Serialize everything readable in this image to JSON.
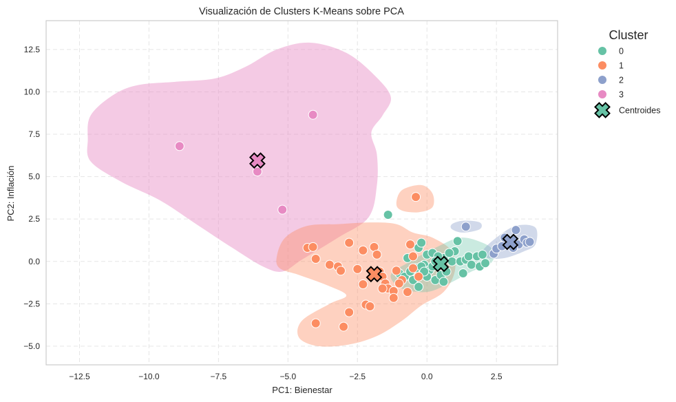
{
  "chart_data": {
    "type": "scatter",
    "title": "Visualización de Clusters K-Means sobre PCA",
    "xlabel": "PC1: Bienestar",
    "ylabel": "PC2: Inflación",
    "xlim": [
      -13.7,
      4.7
    ],
    "ylim": [
      -6.1,
      14.2
    ],
    "xticks": [
      -12.5,
      -10.0,
      -7.5,
      -5.0,
      -2.5,
      0.0,
      2.5
    ],
    "xtick_labels": [
      "−12.5",
      "−10.0",
      "−7.5",
      "−5.0",
      "−2.5",
      "0.0",
      "2.5"
    ],
    "yticks": [
      -5.0,
      -2.5,
      0.0,
      2.5,
      5.0,
      7.5,
      10.0,
      12.5
    ],
    "ytick_labels": [
      "−5.0",
      "−2.5",
      "0.0",
      "2.5",
      "5.0",
      "7.5",
      "10.0",
      "12.5"
    ],
    "grid": true,
    "legend_title": "Cluster",
    "legend_placement": "outside-top-right",
    "series": [
      {
        "name": "0",
        "color": "#66c2a5",
        "points": [
          [
            -1.4,
            2.75
          ],
          [
            -1.0,
            -0.7
          ],
          [
            -0.8,
            -0.9
          ],
          [
            -0.6,
            -0.6
          ],
          [
            -0.5,
            -1.1
          ],
          [
            -0.4,
            -0.4
          ],
          [
            -0.3,
            0.8
          ],
          [
            -0.2,
            1.1
          ],
          [
            -0.1,
            -0.2
          ],
          [
            0.0,
            0.4
          ],
          [
            0.1,
            -0.5
          ],
          [
            0.2,
            0.5
          ],
          [
            0.3,
            -1.1
          ],
          [
            -0.3,
            -1.5
          ],
          [
            0.5,
            -0.8
          ],
          [
            0.6,
            0.2
          ],
          [
            0.7,
            -0.6
          ],
          [
            0.6,
            -1.2
          ],
          [
            0.9,
            0.0
          ],
          [
            1.0,
            0.6
          ],
          [
            1.1,
            1.2
          ],
          [
            1.2,
            0.0
          ],
          [
            1.4,
            0.1
          ],
          [
            1.3,
            -0.7
          ],
          [
            1.5,
            0.3
          ],
          [
            1.6,
            -0.2
          ],
          [
            1.8,
            0.3
          ],
          [
            1.9,
            -0.3
          ],
          [
            2.0,
            0.4
          ],
          [
            2.1,
            -0.1
          ],
          [
            0.4,
            0.3
          ],
          [
            0.2,
            -0.3
          ],
          [
            -0.2,
            -0.3
          ],
          [
            0.0,
            -0.9
          ],
          [
            0.8,
            0.5
          ],
          [
            -0.7,
            0.2
          ],
          [
            -0.1,
            -0.6
          ],
          [
            0.3,
            0.0
          ]
        ]
      },
      {
        "name": "1",
        "color": "#fc8d62",
        "points": [
          [
            -0.4,
            3.8
          ],
          [
            -4.3,
            0.8
          ],
          [
            -4.1,
            0.85
          ],
          [
            -4.0,
            0.15
          ],
          [
            -2.8,
            1.1
          ],
          [
            -2.3,
            0.65
          ],
          [
            -1.9,
            0.85
          ],
          [
            -1.8,
            0.4
          ],
          [
            -3.5,
            -0.2
          ],
          [
            -3.2,
            -0.3
          ],
          [
            -3.1,
            -0.55
          ],
          [
            -2.5,
            -0.45
          ],
          [
            -2.3,
            -1.35
          ],
          [
            -2.2,
            -2.55
          ],
          [
            -2.05,
            -2.65
          ],
          [
            -2.8,
            -3.0
          ],
          [
            -3.0,
            -3.85
          ],
          [
            -4.0,
            -3.65
          ],
          [
            -1.7,
            -0.6
          ],
          [
            -1.6,
            -0.9
          ],
          [
            -1.5,
            -1.3
          ],
          [
            -1.4,
            -1.6
          ],
          [
            -1.2,
            -1.75
          ],
          [
            -1.2,
            -2.15
          ],
          [
            -1.1,
            -0.55
          ],
          [
            -0.9,
            -1.1
          ],
          [
            -0.7,
            -1.8
          ],
          [
            -0.5,
            -0.4
          ],
          [
            -0.6,
            1.0
          ],
          [
            -0.5,
            0.3
          ],
          [
            -0.3,
            -0.9
          ],
          [
            -1.0,
            -1.3
          ],
          [
            -1.6,
            -1.6
          ]
        ]
      },
      {
        "name": "2",
        "color": "#8da0cb",
        "points": [
          [
            1.4,
            2.05
          ],
          [
            3.2,
            1.85
          ],
          [
            2.4,
            0.45
          ],
          [
            2.5,
            0.75
          ],
          [
            2.7,
            0.9
          ],
          [
            2.8,
            1.4
          ],
          [
            3.0,
            1.2
          ],
          [
            3.3,
            1.0
          ],
          [
            3.5,
            1.3
          ],
          [
            3.6,
            1.1
          ],
          [
            3.7,
            1.15
          ],
          [
            3.1,
            0.8
          ]
        ]
      },
      {
        "name": "3",
        "color": "#e78ac3",
        "points": [
          [
            -8.9,
            6.8
          ],
          [
            -4.1,
            8.65
          ],
          [
            -6.1,
            5.3
          ],
          [
            -5.2,
            3.05
          ]
        ]
      }
    ],
    "centroids": {
      "name": "Centroides",
      "points": [
        {
          "cluster": "0",
          "x": 0.5,
          "y": -0.15,
          "color": "#66c2a5"
        },
        {
          "cluster": "1",
          "x": -1.9,
          "y": -0.75,
          "color": "#fc8d62"
        },
        {
          "cluster": "2",
          "x": 3.0,
          "y": 1.15,
          "color": "#8da0cb"
        },
        {
          "cluster": "3",
          "x": -6.1,
          "y": 5.95,
          "color": "#e78ac3"
        }
      ]
    },
    "density_regions": [
      {
        "cluster": "3",
        "color": "#e78ac3",
        "opacity": 0.45,
        "outline": [
          [
            -12.2,
            7.2
          ],
          [
            -12.1,
            8.6
          ],
          [
            -11.3,
            9.8
          ],
          [
            -10.4,
            10.4
          ],
          [
            -9.0,
            10.6
          ],
          [
            -7.6,
            10.8
          ],
          [
            -6.5,
            11.5
          ],
          [
            -5.4,
            12.5
          ],
          [
            -4.2,
            12.9
          ],
          [
            -2.9,
            12.3
          ],
          [
            -1.9,
            11.0
          ],
          [
            -1.3,
            9.7
          ],
          [
            -1.6,
            8.6
          ],
          [
            -2.0,
            7.6
          ],
          [
            -1.8,
            6.3
          ],
          [
            -1.8,
            4.5
          ],
          [
            -2.1,
            2.6
          ],
          [
            -3.2,
            1.4
          ],
          [
            -4.5,
            0.1
          ],
          [
            -5.2,
            -0.6
          ],
          [
            -5.9,
            -0.3
          ],
          [
            -7.0,
            0.8
          ],
          [
            -8.3,
            2.2
          ],
          [
            -9.6,
            3.6
          ],
          [
            -11.0,
            4.7
          ],
          [
            -12.1,
            5.9
          ]
        ]
      },
      {
        "cluster": "1",
        "color": "#fc8d62",
        "opacity": 0.4,
        "outline": [
          [
            -5.4,
            0.3
          ],
          [
            -5.1,
            1.4
          ],
          [
            -4.3,
            2.1
          ],
          [
            -3.2,
            2.2
          ],
          [
            -2.0,
            2.3
          ],
          [
            -1.1,
            2.2
          ],
          [
            -0.5,
            1.7
          ],
          [
            0.2,
            1.4
          ],
          [
            0.9,
            0.6
          ],
          [
            1.0,
            -0.6
          ],
          [
            0.6,
            -1.8
          ],
          [
            -0.2,
            -2.6
          ],
          [
            -0.9,
            -3.5
          ],
          [
            -1.8,
            -4.4
          ],
          [
            -2.8,
            -4.9
          ],
          [
            -3.9,
            -5.0
          ],
          [
            -4.6,
            -4.5
          ],
          [
            -4.5,
            -3.5
          ],
          [
            -3.5,
            -2.5
          ],
          [
            -2.9,
            -2.0
          ],
          [
            -3.6,
            -1.4
          ],
          [
            -4.6,
            -0.8
          ],
          [
            -5.3,
            -0.4
          ]
        ]
      },
      {
        "cluster": "1",
        "color": "#fc8d62",
        "opacity": 0.4,
        "outline": [
          [
            -1.1,
            3.4
          ],
          [
            -0.9,
            4.2
          ],
          [
            -0.2,
            4.5
          ],
          [
            0.2,
            4.0
          ],
          [
            0.2,
            3.2
          ],
          [
            -0.3,
            2.9
          ],
          [
            -0.9,
            3.0
          ]
        ]
      },
      {
        "cluster": "0",
        "color": "#66c2a5",
        "opacity": 0.35,
        "outline": [
          [
            -1.3,
            -0.8
          ],
          [
            -0.6,
            0.0
          ],
          [
            0.3,
            0.8
          ],
          [
            1.2,
            1.4
          ],
          [
            2.0,
            1.1
          ],
          [
            2.4,
            0.6
          ],
          [
            2.3,
            -0.1
          ],
          [
            1.6,
            -0.6
          ],
          [
            0.8,
            -1.3
          ],
          [
            0.0,
            -1.8
          ],
          [
            -0.9,
            -1.6
          ]
        ]
      },
      {
        "cluster": "2",
        "color": "#8da0cb",
        "opacity": 0.4,
        "outline": [
          [
            2.0,
            0.6
          ],
          [
            2.5,
            1.4
          ],
          [
            3.2,
            2.1
          ],
          [
            3.9,
            2.0
          ],
          [
            3.9,
            1.0
          ],
          [
            3.5,
            0.6
          ],
          [
            2.8,
            0.2
          ],
          [
            2.2,
            0.2
          ]
        ]
      },
      {
        "cluster": "2",
        "color": "#8da0cb",
        "opacity": 0.4,
        "outline": [
          [
            0.9,
            2.2
          ],
          [
            1.3,
            2.4
          ],
          [
            1.9,
            2.3
          ],
          [
            1.9,
            1.9
          ],
          [
            1.3,
            1.7
          ],
          [
            0.9,
            1.9
          ]
        ]
      }
    ]
  }
}
